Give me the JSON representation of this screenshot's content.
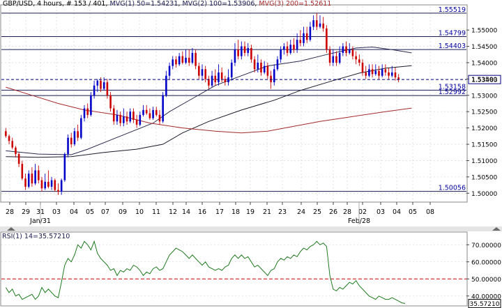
{
  "header": {
    "symbol": "GBP/USD",
    "period": "4 hours",
    "count": "# 153 / 401",
    "ma1": "MVG(1) 50=1.54231",
    "ma2": "MVG(2) 100=1.53906",
    "ma3": "MVG(3) 200=1.52611"
  },
  "rsi_label": "RSI(1) 14=35.57210",
  "colors": {
    "bull": "#0000c8",
    "bear": "#cc0000",
    "ma50": "#2a2a50",
    "ma100": "#1a1a2a",
    "ma200": "#a52a2a",
    "rsi": "#1f7a1f",
    "rsi_mid": "#cc0000",
    "grid": "#cfcfcf",
    "hline": "#1a1a50",
    "current": "#000080"
  },
  "chart_data": [
    {
      "type": "candlestick",
      "symbol": "GBP/USD",
      "timeframe": "4 hours",
      "ylim": [
        1.4975,
        1.5575
      ],
      "y_ticks": [
        "1.55000",
        "1.54500",
        "1.54000",
        "1.53500",
        "1.53000",
        "1.52500",
        "1.52000",
        "1.51500",
        "1.51000",
        "1.50500",
        "1.50000"
      ],
      "x_tick_labels": [
        "28",
        "29",
        "31",
        "03",
        "04",
        "05",
        "07",
        "09",
        "10",
        "11",
        "12",
        "14",
        "16",
        "17",
        "18",
        "19",
        "21",
        "23",
        "24",
        "25",
        "26",
        "28",
        "02",
        "03",
        "04",
        "05",
        "08"
      ],
      "x_major_labels": [
        "Jan/31",
        "Feb/28"
      ],
      "horizontal_levels": [
        "1.55519",
        "1.54799",
        "1.54403",
        "1.53158",
        "1.52992",
        "1.50056"
      ],
      "current_price": "1.53483",
      "moving_averages": [
        {
          "name": "MVG(1) 50",
          "last": 1.54231,
          "points": [
            [
              0,
              1.513
            ],
            [
              10,
              1.512
            ],
            [
              20,
              1.5118
            ],
            [
              25,
              1.5135
            ],
            [
              35,
              1.5175
            ],
            [
              45,
              1.5215
            ],
            [
              50,
              1.525
            ],
            [
              57,
              1.529
            ],
            [
              64,
              1.533
            ],
            [
              72,
              1.536
            ],
            [
              80,
              1.539
            ],
            [
              90,
              1.5405
            ],
            [
              98,
              1.5425
            ],
            [
              107,
              1.5445
            ],
            [
              112,
              1.5448
            ],
            [
              118,
              1.544
            ],
            [
              124,
              1.543
            ]
          ]
        },
        {
          "name": "MVG(2) 100",
          "last": 1.53906,
          "points": [
            [
              0,
              1.5112
            ],
            [
              10,
              1.511
            ],
            [
              20,
              1.5112
            ],
            [
              30,
              1.5125
            ],
            [
              40,
              1.5135
            ],
            [
              48,
              1.515
            ],
            [
              54,
              1.5185
            ],
            [
              62,
              1.522
            ],
            [
              72,
              1.5255
            ],
            [
              82,
              1.5285
            ],
            [
              90,
              1.5315
            ],
            [
              100,
              1.5345
            ],
            [
              108,
              1.5368
            ],
            [
              116,
              1.5383
            ],
            [
              124,
              1.5391
            ]
          ]
        },
        {
          "name": "MVG(3) 200",
          "last": 1.52611,
          "points": [
            [
              0,
              1.5325
            ],
            [
              8,
              1.53
            ],
            [
              16,
              1.5275
            ],
            [
              24,
              1.5255
            ],
            [
              34,
              1.524
            ],
            [
              44,
              1.5215
            ],
            [
              54,
              1.52
            ],
            [
              64,
              1.519
            ],
            [
              72,
              1.5185
            ],
            [
              80,
              1.519
            ],
            [
              88,
              1.5205
            ],
            [
              96,
              1.522
            ],
            [
              106,
              1.5235
            ],
            [
              116,
              1.525
            ],
            [
              124,
              1.5261
            ]
          ]
        }
      ],
      "candles": [
        [
          1.519,
          1.5175,
          1.52,
          1.517
        ],
        [
          1.5175,
          1.516,
          1.518,
          1.515
        ],
        [
          1.516,
          1.514,
          1.517,
          1.5135
        ],
        [
          1.514,
          1.512,
          1.5145,
          1.511
        ],
        [
          1.512,
          1.509,
          1.5125,
          1.508
        ],
        [
          1.509,
          1.5045,
          1.51,
          1.504
        ],
        [
          1.5045,
          1.502,
          1.506,
          1.501
        ],
        [
          1.502,
          1.506,
          1.507,
          1.5015
        ],
        [
          1.506,
          1.503,
          1.508,
          1.502
        ],
        [
          1.503,
          1.507,
          1.509,
          1.5025
        ],
        [
          1.507,
          1.504,
          1.5085,
          1.503
        ],
        [
          1.504,
          1.5015,
          1.505,
          1.5005
        ],
        [
          1.5015,
          1.5035,
          1.506,
          1.501
        ],
        [
          1.5035,
          1.502,
          1.507,
          1.5015
        ],
        [
          1.502,
          1.504,
          1.505,
          1.501
        ],
        [
          1.504,
          1.501,
          1.5045,
          1.5005
        ],
        [
          1.501,
          1.5005,
          1.503,
          1.4995
        ],
        [
          1.5005,
          1.504,
          1.5045,
          1.4995
        ],
        [
          1.504,
          1.512,
          1.5125,
          1.5035
        ],
        [
          1.512,
          1.517,
          1.518,
          1.511
        ],
        [
          1.517,
          1.515,
          1.5185,
          1.514
        ],
        [
          1.515,
          1.519,
          1.52,
          1.5145
        ],
        [
          1.519,
          1.517,
          1.521,
          1.516
        ],
        [
          1.517,
          1.523,
          1.524,
          1.5165
        ],
        [
          1.523,
          1.526,
          1.527,
          1.522
        ],
        [
          1.526,
          1.524,
          1.5275,
          1.523
        ],
        [
          1.524,
          1.53,
          1.531,
          1.5235
        ],
        [
          1.53,
          1.533,
          1.5345,
          1.529
        ],
        [
          1.533,
          1.5345,
          1.535,
          1.531
        ],
        [
          1.5345,
          1.532,
          1.5355,
          1.531
        ],
        [
          1.532,
          1.534,
          1.5355,
          1.5315
        ],
        [
          1.534,
          1.53,
          1.535,
          1.529
        ],
        [
          1.53,
          1.526,
          1.531,
          1.525
        ],
        [
          1.526,
          1.522,
          1.527,
          1.521
        ],
        [
          1.522,
          1.524,
          1.5255,
          1.521
        ],
        [
          1.524,
          1.5215,
          1.525,
          1.5205
        ],
        [
          1.5215,
          1.5235,
          1.526,
          1.5205
        ],
        [
          1.5235,
          1.522,
          1.525,
          1.521
        ],
        [
          1.522,
          1.525,
          1.526,
          1.5215
        ],
        [
          1.525,
          1.5225,
          1.526,
          1.5215
        ],
        [
          1.5225,
          1.521,
          1.524,
          1.52
        ],
        [
          1.521,
          1.524,
          1.525,
          1.5205
        ],
        [
          1.524,
          1.5255,
          1.527,
          1.5235
        ],
        [
          1.5255,
          1.5245,
          1.527,
          1.524
        ],
        [
          1.5245,
          1.523,
          1.526,
          1.5225
        ],
        [
          1.523,
          1.5255,
          1.5265,
          1.5225
        ],
        [
          1.5255,
          1.524,
          1.5265,
          1.5235
        ],
        [
          1.524,
          1.522,
          1.5255,
          1.521
        ],
        [
          1.522,
          1.53,
          1.531,
          1.5215
        ],
        [
          1.53,
          1.536,
          1.5375,
          1.5295
        ],
        [
          1.536,
          1.539,
          1.54,
          1.535
        ],
        [
          1.539,
          1.541,
          1.542,
          1.538
        ],
        [
          1.541,
          1.5395,
          1.542,
          1.5385
        ],
        [
          1.5395,
          1.542,
          1.543,
          1.539
        ],
        [
          1.542,
          1.54,
          1.5435,
          1.5395
        ],
        [
          1.54,
          1.5415,
          1.544,
          1.5395
        ],
        [
          1.5415,
          1.54,
          1.544,
          1.539
        ],
        [
          1.54,
          1.543,
          1.5445,
          1.5395
        ],
        [
          1.543,
          1.539,
          1.544,
          1.538
        ],
        [
          1.539,
          1.536,
          1.54,
          1.535
        ],
        [
          1.536,
          1.538,
          1.5395,
          1.5345
        ],
        [
          1.538,
          1.535,
          1.539,
          1.534
        ],
        [
          1.535,
          1.533,
          1.536,
          1.532
        ],
        [
          1.533,
          1.536,
          1.5375,
          1.5325
        ],
        [
          1.536,
          1.534,
          1.538,
          1.533
        ],
        [
          1.534,
          1.537,
          1.5395,
          1.533
        ],
        [
          1.537,
          1.535,
          1.5385,
          1.534
        ],
        [
          1.535,
          1.534,
          1.536,
          1.533
        ],
        [
          1.534,
          1.5355,
          1.538,
          1.533
        ],
        [
          1.5355,
          1.54,
          1.541,
          1.5345
        ],
        [
          1.54,
          1.544,
          1.546,
          1.539
        ],
        [
          1.544,
          1.542,
          1.547,
          1.541
        ],
        [
          1.542,
          1.545,
          1.5465,
          1.541
        ],
        [
          1.545,
          1.543,
          1.5465,
          1.542
        ],
        [
          1.543,
          1.5445,
          1.546,
          1.542
        ],
        [
          1.5445,
          1.541,
          1.5455,
          1.54
        ],
        [
          1.541,
          1.538,
          1.542,
          1.537
        ],
        [
          1.538,
          1.54,
          1.5425,
          1.537
        ],
        [
          1.54,
          1.537,
          1.541,
          1.536
        ],
        [
          1.537,
          1.539,
          1.5405,
          1.5365
        ],
        [
          1.539,
          1.536,
          1.54,
          1.535
        ],
        [
          1.536,
          1.534,
          1.5375,
          1.532
        ],
        [
          1.534,
          1.538,
          1.5395,
          1.533
        ],
        [
          1.538,
          1.541,
          1.542,
          1.5375
        ],
        [
          1.541,
          1.544,
          1.545,
          1.54
        ],
        [
          1.544,
          1.545,
          1.546,
          1.5425
        ],
        [
          1.545,
          1.543,
          1.5465,
          1.542
        ],
        [
          1.543,
          1.5455,
          1.547,
          1.5425
        ],
        [
          1.5455,
          1.544,
          1.5475,
          1.543
        ],
        [
          1.544,
          1.547,
          1.549,
          1.543
        ],
        [
          1.547,
          1.546,
          1.55,
          1.545
        ],
        [
          1.546,
          1.549,
          1.551,
          1.545
        ],
        [
          1.549,
          1.547,
          1.551,
          1.546
        ],
        [
          1.547,
          1.551,
          1.5525,
          1.5465
        ],
        [
          1.551,
          1.553,
          1.5545,
          1.55
        ],
        [
          1.553,
          1.551,
          1.5552,
          1.55
        ],
        [
          1.551,
          1.552,
          1.5545,
          1.5505
        ],
        [
          1.552,
          1.5505,
          1.554,
          1.5495
        ],
        [
          1.5505,
          1.544,
          1.5515,
          1.543
        ],
        [
          1.544,
          1.54,
          1.545,
          1.539
        ],
        [
          1.54,
          1.542,
          1.544,
          1.539
        ],
        [
          1.542,
          1.54,
          1.5435,
          1.539
        ],
        [
          1.54,
          1.543,
          1.545,
          1.5395
        ],
        [
          1.543,
          1.545,
          1.546,
          1.542
        ],
        [
          1.545,
          1.543,
          1.5465,
          1.542
        ],
        [
          1.543,
          1.544,
          1.546,
          1.5425
        ],
        [
          1.544,
          1.542,
          1.545,
          1.541
        ],
        [
          1.542,
          1.541,
          1.5435,
          1.5395
        ],
        [
          1.541,
          1.54,
          1.5425,
          1.539
        ],
        [
          1.54,
          1.537,
          1.541,
          1.536
        ],
        [
          1.537,
          1.536,
          1.539,
          1.535
        ],
        [
          1.536,
          1.538,
          1.5395,
          1.5355
        ],
        [
          1.538,
          1.5365,
          1.5395,
          1.5355
        ],
        [
          1.5365,
          1.5375,
          1.5395,
          1.536
        ],
        [
          1.5375,
          1.536,
          1.539,
          1.535
        ],
        [
          1.536,
          1.538,
          1.5395,
          1.5355
        ],
        [
          1.538,
          1.537,
          1.5395,
          1.536
        ],
        [
          1.537,
          1.536,
          1.5385,
          1.535
        ],
        [
          1.536,
          1.537,
          1.539,
          1.5355
        ],
        [
          1.537,
          1.5355,
          1.5385,
          1.5345
        ],
        [
          1.5355,
          1.5348,
          1.5365,
          1.534
        ]
      ]
    },
    {
      "type": "line",
      "name": "RSI(1) 14",
      "last": 35.5721,
      "ylim": [
        35,
        75
      ],
      "y_ticks": [
        "70.00000",
        "60.00000",
        "50.00000",
        "40.00000"
      ],
      "reference_line": 50,
      "values": [
        45,
        42,
        44,
        40,
        41,
        38,
        39,
        40,
        41,
        38,
        40,
        45,
        42,
        44,
        42,
        40,
        39,
        48,
        58,
        62,
        60,
        64,
        70,
        68,
        72,
        70,
        67,
        72,
        65,
        62,
        60,
        58,
        55,
        56,
        52,
        55,
        54,
        56,
        55,
        58,
        57,
        55,
        52,
        54,
        53,
        56,
        57,
        55,
        56,
        60,
        64,
        66,
        68,
        67,
        66,
        64,
        62,
        64,
        62,
        60,
        58,
        60,
        57,
        56,
        55,
        56,
        55,
        57,
        58,
        62,
        64,
        62,
        64,
        62,
        63,
        60,
        57,
        58,
        56,
        54,
        52,
        55,
        56,
        60,
        62,
        61,
        63,
        62,
        64,
        63,
        66,
        68,
        67,
        69,
        70,
        72,
        70,
        71,
        69,
        52,
        44,
        43,
        45,
        44,
        46,
        48,
        47,
        49,
        46,
        44,
        42,
        40,
        39,
        38,
        40,
        39,
        38,
        38,
        39,
        38,
        37,
        36,
        35.6
      ]
    }
  ]
}
